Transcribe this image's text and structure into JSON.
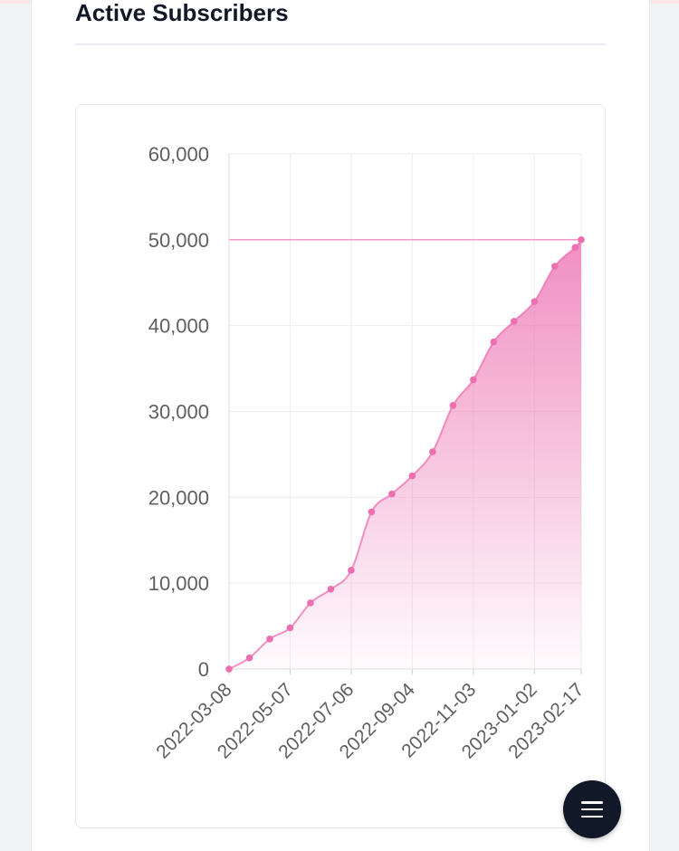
{
  "header": {
    "title": "Active Subscribers"
  },
  "fab": {
    "icon": "menu-icon"
  },
  "colors": {
    "series": "#ec6fb0",
    "grid": "#eeeeee",
    "axis_text": "#5f5f5f"
  },
  "chart_data": {
    "type": "area",
    "title": "",
    "xlabel": "",
    "ylabel": "",
    "ylim": [
      0,
      60000
    ],
    "yticks": [
      0,
      10000,
      20000,
      30000,
      40000,
      50000,
      60000
    ],
    "ytick_labels": [
      "0",
      "10,000",
      "20,000",
      "30,000",
      "40,000",
      "50,000",
      "60,000"
    ],
    "xticks": [
      "2022-03-08",
      "2022-05-07",
      "2022-07-06",
      "2022-09-04",
      "2022-11-03",
      "2023-01-02",
      "2023-02-17"
    ],
    "grid": true,
    "reference_line": 50000,
    "series": [
      {
        "x": [
          "2022-03-08",
          "2022-03-28",
          "2022-04-17",
          "2022-05-07",
          "2022-05-27",
          "2022-06-16",
          "2022-07-06",
          "2022-07-26",
          "2022-08-15",
          "2022-09-04",
          "2022-09-24",
          "2022-10-14",
          "2022-11-03",
          "2022-11-23",
          "2022-12-13",
          "2023-01-02",
          "2023-01-22",
          "2023-02-11",
          "2023-02-17"
        ],
        "values": [
          0,
          1300,
          3500,
          4800,
          7700,
          9300,
          11500,
          18300,
          20400,
          22500,
          25300,
          30700,
          33700,
          38100,
          40500,
          42800,
          46900,
          49100,
          50000
        ]
      }
    ]
  }
}
